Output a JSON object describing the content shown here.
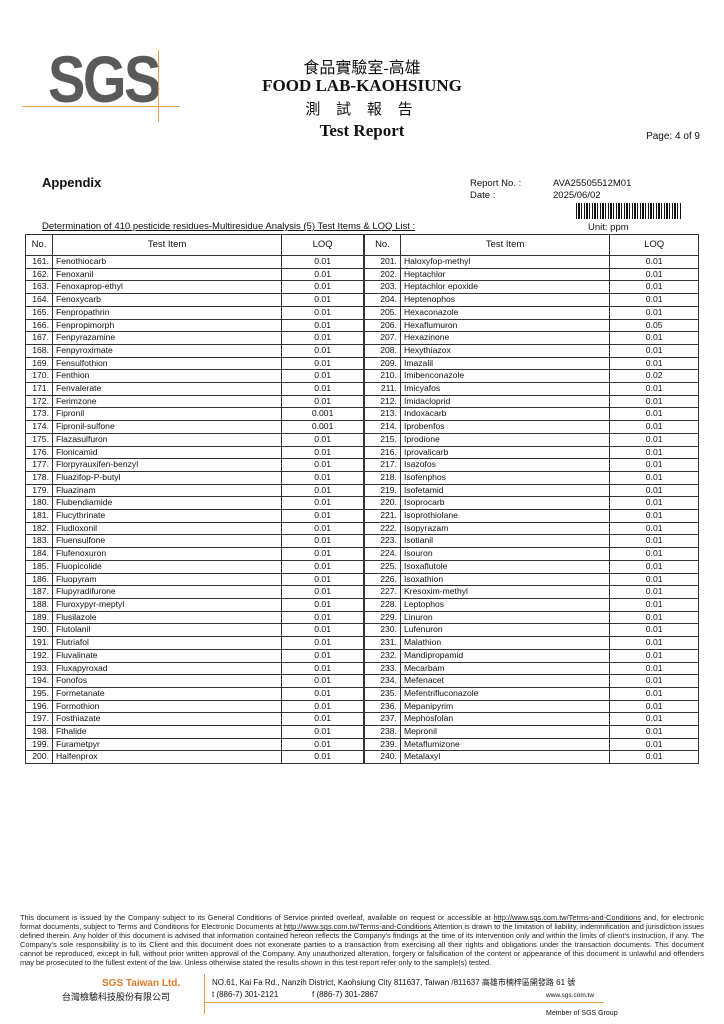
{
  "header": {
    "logo_text": "SGS",
    "title_zh": "食品實驗室-高雄",
    "title_en": "FOOD LAB-KAOHSIUNG",
    "report_zh": "測 試 報 告",
    "report_en": "Test Report",
    "page": "Page: 4 of 9"
  },
  "info": {
    "section": "Appendix",
    "report_no_label": "Report No. :",
    "report_no": "AVA25505512M01",
    "date_label": "Date :",
    "date": "2025/06/02",
    "determination": "Determination of 410 pesticide residues-Multiresidue Analysis (5) Test Items & LOQ List :",
    "unit": "Unit:  ppm"
  },
  "table": {
    "headers": [
      "No.",
      "Test Item",
      "LOQ"
    ],
    "left": [
      [
        "161.",
        "Fenothiocarb",
        "0.01"
      ],
      [
        "162.",
        "Fenoxanil",
        "0.01"
      ],
      [
        "163.",
        "Fenoxaprop-ethyl",
        "0.01"
      ],
      [
        "164.",
        "Fenoxycarb",
        "0.01"
      ],
      [
        "165.",
        "Fenpropathrin",
        "0.01"
      ],
      [
        "166.",
        "Fenpropimorph",
        "0.01"
      ],
      [
        "167.",
        "Fenpyrazamine",
        "0.01"
      ],
      [
        "168.",
        "Fenpyroximate",
        "0.01"
      ],
      [
        "169.",
        "Fensulfothion",
        "0.01"
      ],
      [
        "170.",
        "Fenthion",
        "0.01"
      ],
      [
        "171.",
        "Fenvalerate",
        "0.01"
      ],
      [
        "172.",
        "Ferimzone",
        "0.01"
      ],
      [
        "173.",
        "Fipronil",
        "0.001"
      ],
      [
        "174.",
        "Fipronil-sulfone",
        "0.001"
      ],
      [
        "175.",
        "Flazasulfuron",
        "0.01"
      ],
      [
        "176.",
        "Flonicamid",
        "0.01"
      ],
      [
        "177.",
        "Florpyrauxifen-benzyl",
        "0.01"
      ],
      [
        "178.",
        "Fluazifop-P-butyl",
        "0.01"
      ],
      [
        "179.",
        "Fluazinam",
        "0.01"
      ],
      [
        "180.",
        "Flubendiamide",
        "0.01"
      ],
      [
        "181.",
        "Flucythrinate",
        "0.01"
      ],
      [
        "182.",
        "Fludioxonil",
        "0.01"
      ],
      [
        "183.",
        "Fluensulfone",
        "0.01"
      ],
      [
        "184.",
        "Flufenoxuron",
        "0.01"
      ],
      [
        "185.",
        "Fluopicolide",
        "0.01"
      ],
      [
        "186.",
        "Fluopyram",
        "0.01"
      ],
      [
        "187.",
        "Flupyradifurone",
        "0.01"
      ],
      [
        "188.",
        "Fluroxypyr-meptyl",
        "0.01"
      ],
      [
        "189.",
        "Flusilazole",
        "0.01"
      ],
      [
        "190.",
        "Flutolanil",
        "0.01"
      ],
      [
        "191.",
        "Flutriafol",
        "0.01"
      ],
      [
        "192.",
        "Fluvalinate",
        "0.01"
      ],
      [
        "193.",
        "Fluxapyroxad",
        "0.01"
      ],
      [
        "194.",
        "Fonofos",
        "0.01"
      ],
      [
        "195.",
        "Formetanate",
        "0.01"
      ],
      [
        "196.",
        "Formothion",
        "0.01"
      ],
      [
        "197.",
        "Fosthiazate",
        "0.01"
      ],
      [
        "198.",
        "Fthalide",
        "0.01"
      ],
      [
        "199.",
        "Furametpyr",
        "0.01"
      ],
      [
        "200.",
        "Halfenprox",
        "0.01"
      ]
    ],
    "right": [
      [
        "201.",
        "Haloxyfop-methyl",
        "0.01"
      ],
      [
        "202.",
        "Heptachlor",
        "0.01"
      ],
      [
        "203.",
        "Heptachlor epoxide",
        "0.01"
      ],
      [
        "204.",
        "Heptenophos",
        "0.01"
      ],
      [
        "205.",
        "Hexaconazole",
        "0.01"
      ],
      [
        "206.",
        "Hexaflumuron",
        "0.05"
      ],
      [
        "207.",
        "Hexazinone",
        "0.01"
      ],
      [
        "208.",
        "Hexythiazox",
        "0.01"
      ],
      [
        "209.",
        "Imazalil",
        "0.01"
      ],
      [
        "210.",
        "Imibenconazole",
        "0.02"
      ],
      [
        "211.",
        "Imicyafos",
        "0.01"
      ],
      [
        "212.",
        "Imidacloprid",
        "0.01"
      ],
      [
        "213.",
        "Indoxacarb",
        "0.01"
      ],
      [
        "214.",
        "Iprobenfos",
        "0.01"
      ],
      [
        "215.",
        "Iprodione",
        "0.01"
      ],
      [
        "216.",
        "Iprovalicarb",
        "0.01"
      ],
      [
        "217.",
        "Isazofos",
        "0.01"
      ],
      [
        "218.",
        "Isofenphos",
        "0.01"
      ],
      [
        "219.",
        "Isofetamid",
        "0.01"
      ],
      [
        "220.",
        "Isoprocarb",
        "0.01"
      ],
      [
        "221.",
        "Isoprothiolane",
        "0.01"
      ],
      [
        "222.",
        "Isopyrazam",
        "0.01"
      ],
      [
        "223.",
        "Isotianil",
        "0.01"
      ],
      [
        "224.",
        "Isouron",
        "0.01"
      ],
      [
        "225.",
        "Isoxaflutole",
        "0.01"
      ],
      [
        "226.",
        "Isoxathion",
        "0.01"
      ],
      [
        "227.",
        "Kresoxim-methyl",
        "0.01"
      ],
      [
        "228.",
        "Leptophos",
        "0.01"
      ],
      [
        "229.",
        "Linuron",
        "0.01"
      ],
      [
        "230.",
        "Lufenuron",
        "0.01"
      ],
      [
        "231.",
        "Malathion",
        "0.01"
      ],
      [
        "232.",
        "Mandipropamid",
        "0.01"
      ],
      [
        "233.",
        "Mecarbam",
        "0.01"
      ],
      [
        "234.",
        "Mefenacet",
        "0.01"
      ],
      [
        "235.",
        "Mefentrifluconazole",
        "0.01"
      ],
      [
        "236.",
        "Mepanipyrim",
        "0.01"
      ],
      [
        "237.",
        "Mephosfolan",
        "0.01"
      ],
      [
        "238.",
        "Mepronil",
        "0.01"
      ],
      [
        "239.",
        "Metaflumizone",
        "0.01"
      ],
      [
        "240.",
        "Metalaxyl",
        "0.01"
      ]
    ]
  },
  "footer": {
    "disclaimer_1": "This document is issued by the Company subject to its General Conditions of Service printed overleaf, available on request or accessible at ",
    "link_1": "http://www.sgs.com.tw/Terms-and-Conditions",
    "disclaimer_2": " and, for electronic format documents, subject to Terms and Conditions for Electronic Documents at ",
    "link_2": "http://www.sgs.com.tw/Terms-and-Conditions",
    "disclaimer_3": " Attention is drawn to the limitation of liability, indemnification and jurisdiction issues defined therein. Any holder of this document is advised that information contained hereon reflects the Company's findings at the time of its intervention only and within the limits of client's instruction, if any. The Company's sole responsibility is to its Client and this document does not exonerate parties to a transaction from exercising all their rights and obligations under the transaction documents. This document cannot be reproduced, except in full, without prior written approval of the Company. Any unauthorized alteration, forgery or falsification of the content or appearance of this document is unlawful and offenders may be prosecuted to the fullest extent of the law. Unless otherwise stated the results shown in this test report refer only to the sample(s) tested.",
    "company_en": "SGS Taiwan Ltd.",
    "company_zh": "台灣檢驗科技股份有限公司",
    "address": "NO.61, Kai Fa Rd., Nanzih District, Kaohsiung City 811637, Taiwan /811637 高雄市楠梓區開發路 61 號",
    "tel": "t (886-7) 301-2121",
    "fax": "f (886-7) 301-2867",
    "website": "www.sgs.com.tw",
    "member": "Member of SGS Group"
  },
  "colors": {
    "accent": "#e07b2a",
    "logo": "#5a5a5a"
  }
}
